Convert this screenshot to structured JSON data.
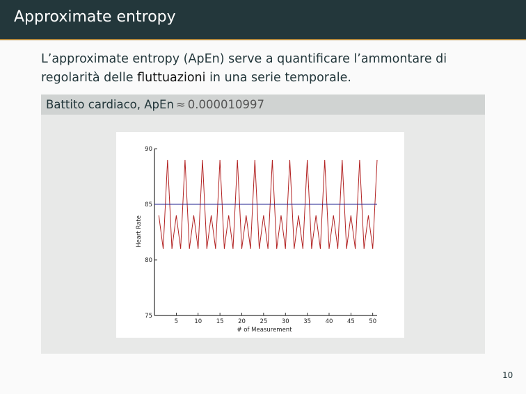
{
  "slide": {
    "title": "Approximate entropy",
    "intro_before": "L’approximate entropy (ApEn) serve a quantificare l’ammontare di regolarità delle ",
    "intro_emph": "fluttuazioni",
    "intro_after": " in una serie temporale.",
    "block_title_text": "Battito cardiaco, ApEn",
    "block_title_approx": "≈",
    "block_title_value": "0.000010997",
    "page_number": "10"
  },
  "colors": {
    "header_bg": "#23373b",
    "accent_rule": "#b5893e",
    "series_line": "#b22222",
    "mean_line": "#1f1f8f"
  },
  "chart_data": {
    "type": "line",
    "xlabel": "# of Measurement",
    "ylabel": "Heart Rate",
    "xlim": [
      0,
      51
    ],
    "ylim": [
      75,
      90
    ],
    "xticks": [
      5,
      10,
      15,
      20,
      25,
      30,
      35,
      40,
      45,
      50
    ],
    "yticks": [
      75,
      80,
      85,
      90
    ],
    "ytick_labels": [
      "75",
      "80",
      "85",
      "90"
    ],
    "grid": false,
    "series": [
      {
        "x": [
          1,
          2,
          3,
          4,
          5,
          6,
          7,
          8,
          9,
          10,
          11,
          12,
          13,
          14,
          15,
          16,
          17,
          18,
          19,
          20,
          21,
          22,
          23,
          24,
          25,
          26,
          27,
          28,
          29,
          30,
          31,
          32,
          33,
          34,
          35,
          36,
          37,
          38,
          39,
          40,
          41,
          42,
          43,
          44,
          45,
          46,
          47,
          48,
          49,
          50,
          51
        ],
        "values": [
          84,
          81,
          89,
          81,
          84,
          81,
          89,
          81,
          84,
          81,
          89,
          81,
          84,
          81,
          89,
          81,
          84,
          81,
          89,
          81,
          84,
          81,
          89,
          81,
          84,
          81,
          89,
          81,
          84,
          81,
          89,
          81,
          84,
          81,
          89,
          81,
          84,
          81,
          89,
          81,
          84,
          81,
          89,
          81,
          84,
          81,
          89,
          81,
          84,
          81,
          89
        ]
      },
      {
        "x": [
          0,
          51
        ],
        "values": [
          85,
          85
        ]
      }
    ]
  }
}
